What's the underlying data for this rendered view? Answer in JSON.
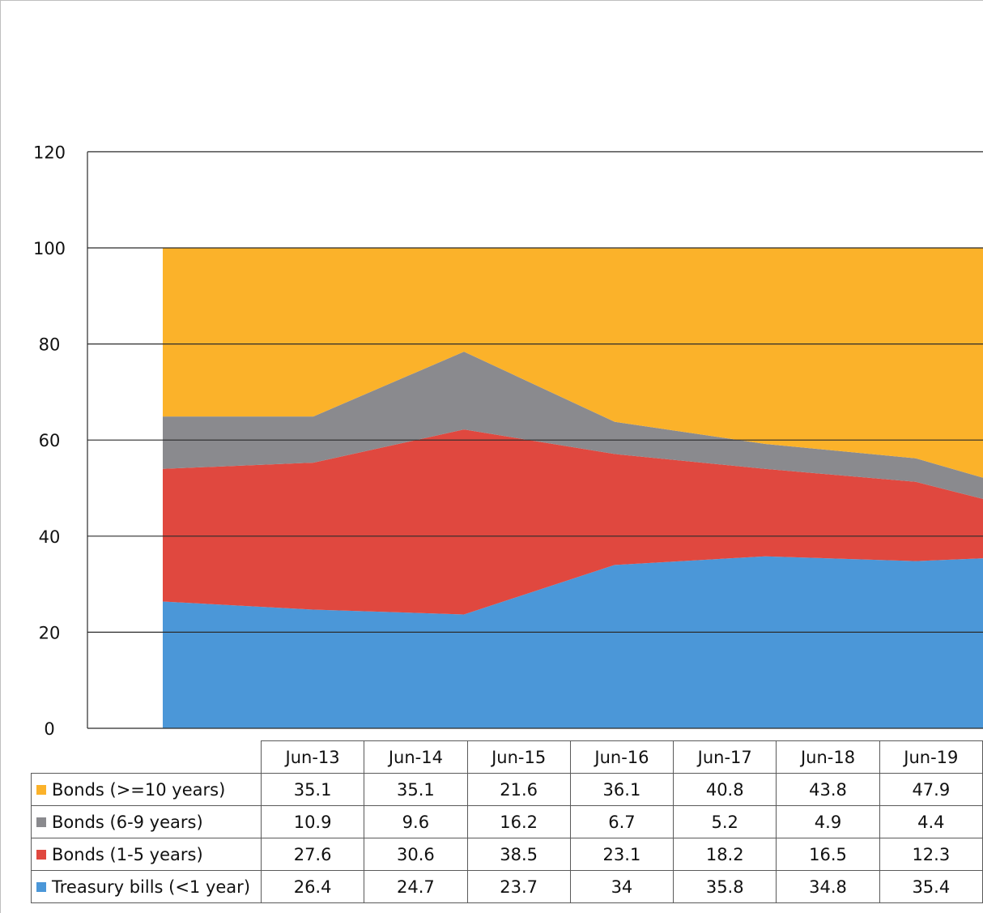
{
  "chart_data": {
    "type": "area",
    "stacked": true,
    "title": "",
    "xlabel": "",
    "ylabel": "",
    "ylim": [
      0,
      120
    ],
    "yticks": [
      0,
      20,
      40,
      60,
      80,
      100,
      120
    ],
    "grid": "horizontal",
    "legend": "data-table",
    "categories": [
      "Jun-13",
      "Jun-14",
      "Jun-15",
      "Jun-16",
      "Jun-17",
      "Jun-18",
      "Jun-19"
    ],
    "series": [
      {
        "name": "Bonds (>=10 years)",
        "color": "#fbb22a",
        "values": [
          35.1,
          35.1,
          21.6,
          36.1,
          40.8,
          43.8,
          47.9
        ]
      },
      {
        "name": "Bonds (6-9 years)",
        "color": "#8a8a8e",
        "values": [
          10.9,
          9.6,
          16.2,
          6.7,
          5.2,
          4.9,
          4.4
        ]
      },
      {
        "name": "Bonds (1-5 years)",
        "color": "#e0483f",
        "values": [
          27.6,
          30.6,
          38.5,
          23.1,
          18.2,
          16.5,
          12.3
        ]
      },
      {
        "name": "Treasury bills (<1 year)",
        "color": "#4b97d8",
        "values": [
          26.4,
          24.7,
          23.7,
          34,
          35.8,
          34.8,
          35.4
        ]
      }
    ]
  }
}
